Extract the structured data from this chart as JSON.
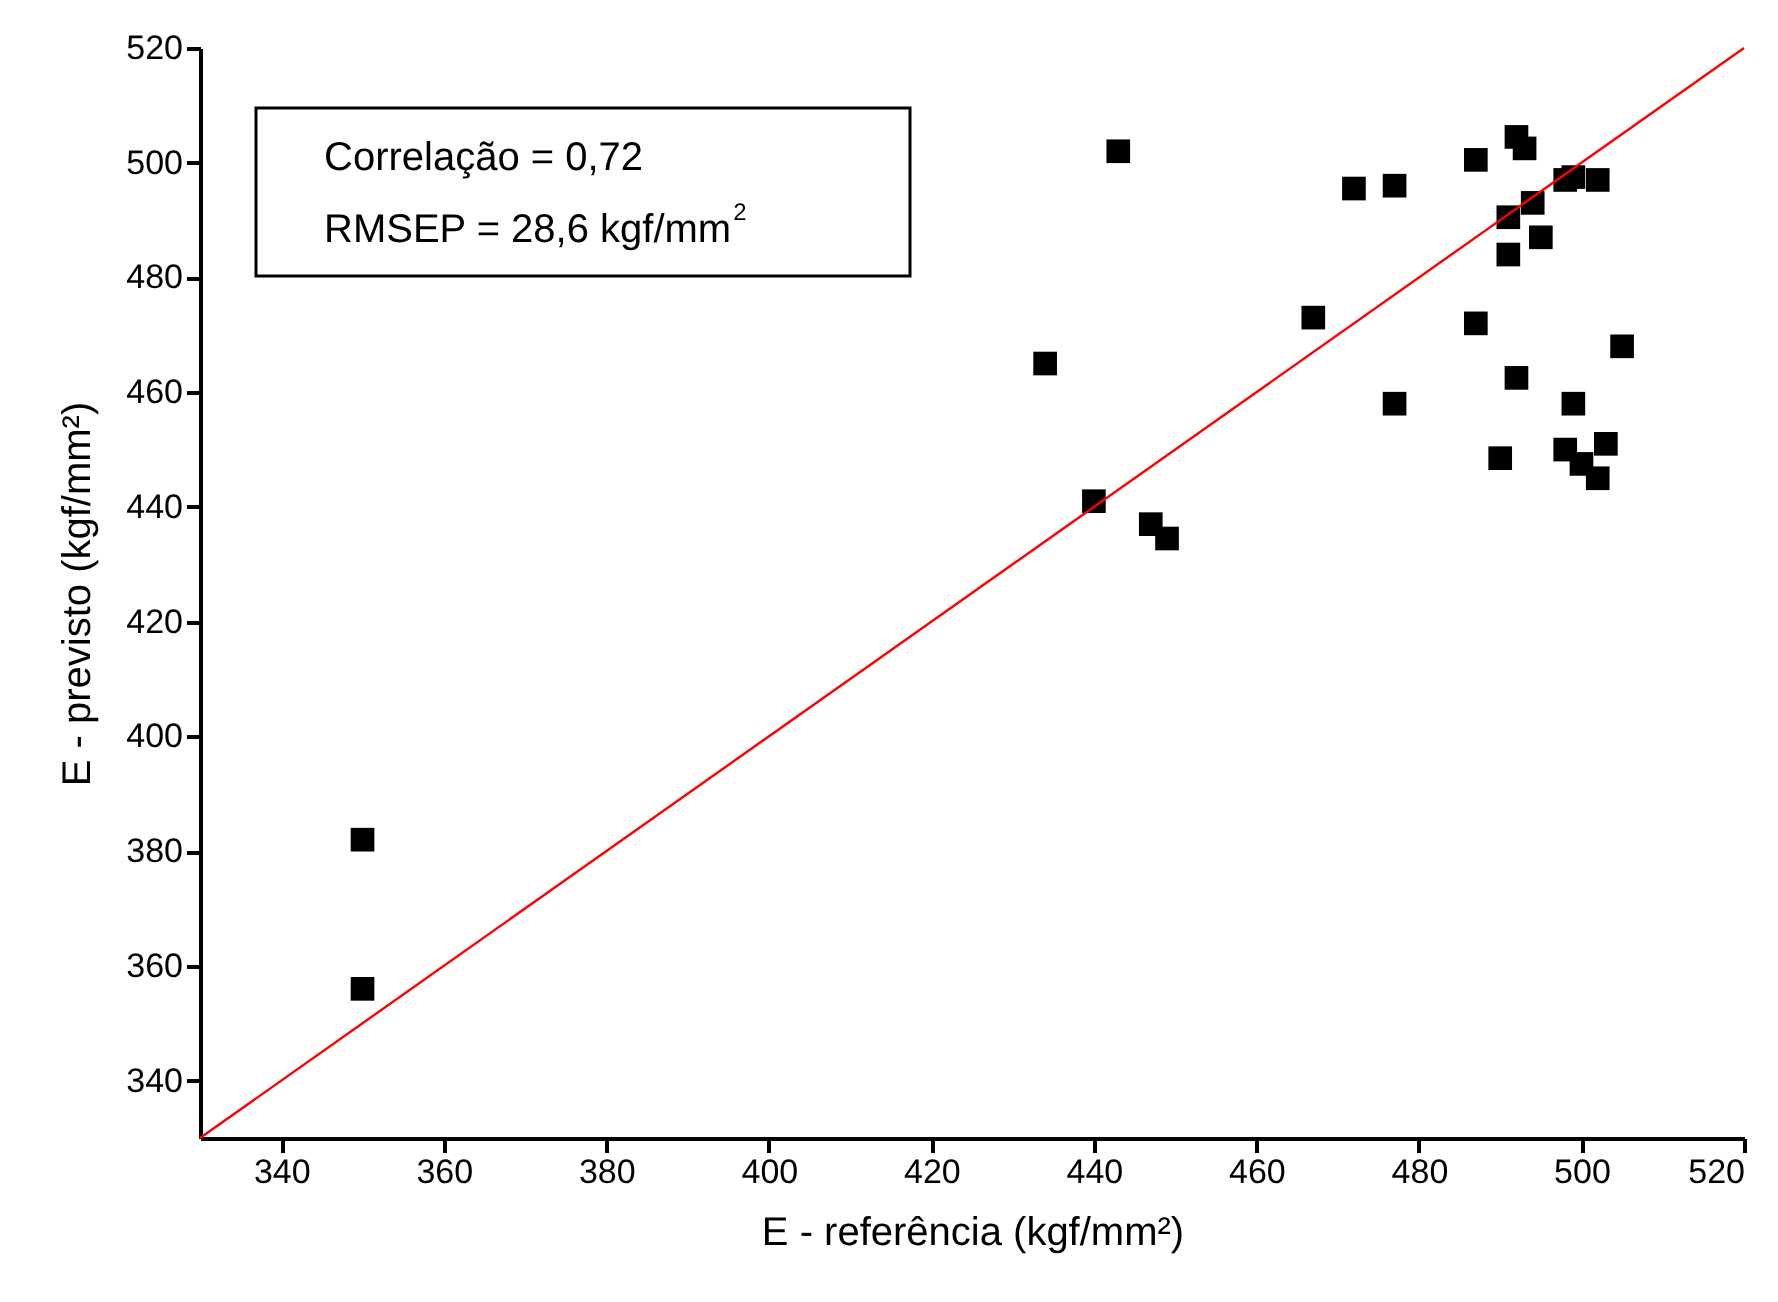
{
  "chart_data": {
    "type": "scatter",
    "xlabel": "E - referência (kgf/mm²)",
    "ylabel": "E - previsto (kgf/mm²)",
    "annotations": [
      "Correlação = 0,72",
      "RMSEP = 28,6 kgf/mm$^{2}$"
    ],
    "xlim": [
      330,
      520
    ],
    "xticks": [
      340,
      360,
      380,
      400,
      420,
      440,
      460,
      480,
      500,
      520
    ],
    "ylim": [
      330,
      520
    ],
    "yticks": [
      340,
      360,
      380,
      400,
      420,
      440,
      460,
      480,
      500,
      520
    ],
    "grid": false,
    "series": [
      {
        "marker": "square",
        "color": "#000000",
        "x": [
          350,
          350,
          434,
          440,
          443,
          447,
          449,
          467,
          472,
          477,
          477,
          487,
          487,
          490,
          491,
          491,
          492,
          492,
          493,
          494,
          495,
          498,
          498,
          499,
          499,
          500,
          502,
          502,
          503,
          505
        ],
        "values": [
          382,
          356,
          465,
          441,
          502,
          437,
          434.5,
          473,
          495.5,
          496,
          458,
          500.5,
          472,
          448.5,
          490.5,
          484,
          504.5,
          462.5,
          502.5,
          493,
          487,
          497,
          450,
          497.5,
          458,
          447.5,
          497,
          445,
          451,
          468
        ]
      },
      {
        "type": "line",
        "color": "#ff0000",
        "x": [
          330,
          520
        ],
        "values": [
          330,
          520
        ]
      }
    ]
  }
}
